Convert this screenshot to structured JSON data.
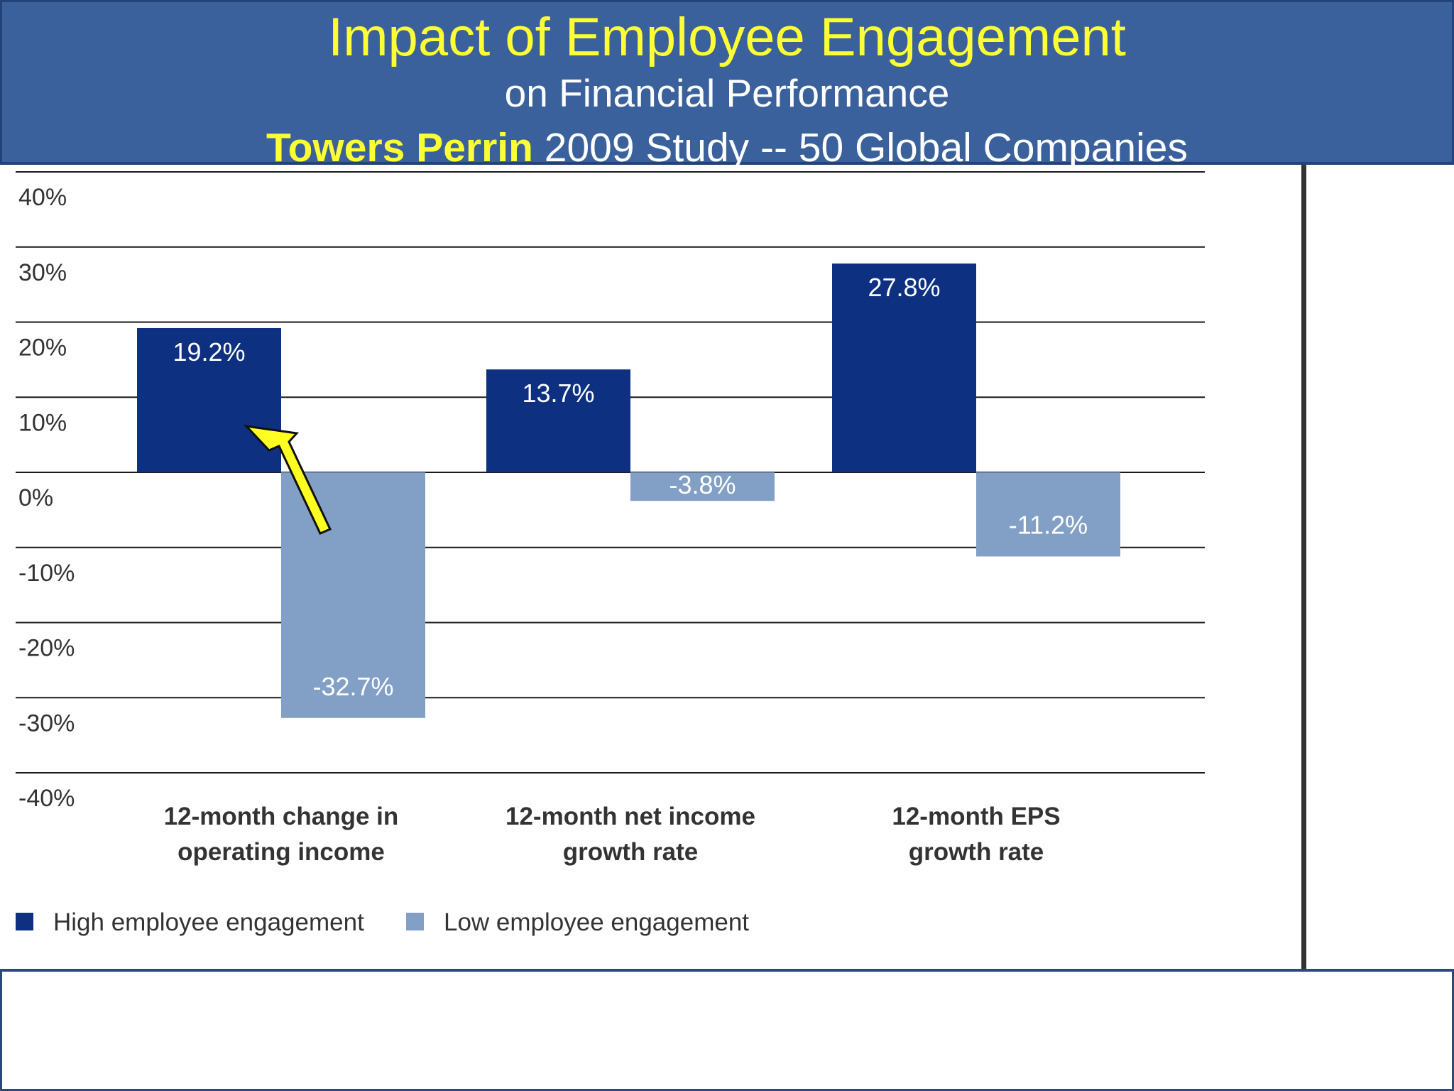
{
  "header": {
    "title": "Impact of Employee Engagement",
    "subtitle": "on Financial Performance",
    "source_highlight": "Towers Perrin",
    "source_rest": " 2009 Study -- 50 Global Companies"
  },
  "colors": {
    "banner": "#3a619b",
    "title": "#ffff33",
    "high": "#0d3080",
    "low": "#82a0c6",
    "arrow": "#ffff22"
  },
  "chart_data": {
    "type": "bar",
    "title": "Impact of Employee Engagement",
    "categories": [
      [
        "12-month change in",
        "operating income"
      ],
      [
        "12-month net income",
        "growth rate"
      ],
      [
        "12-month EPS",
        "growth rate"
      ]
    ],
    "series": [
      {
        "name": "High employee engagement",
        "values": [
          19.2,
          13.7,
          27.8
        ],
        "labels": [
          "19.2%",
          "13.7%",
          "27.8%"
        ]
      },
      {
        "name": "Low employee engagement",
        "values": [
          -32.7,
          -3.8,
          -11.2
        ],
        "labels": [
          "-32.7%",
          "-3.8%",
          "-11.2%"
        ]
      }
    ],
    "ylim": [
      -40,
      40
    ],
    "yticks": [
      40,
      30,
      20,
      10,
      0,
      -10,
      -20,
      -30,
      -40
    ],
    "ytick_labels": [
      "40%",
      "30%",
      "20%",
      "10%",
      "0%",
      "-10%",
      "-20%",
      "-30%",
      "-40%"
    ],
    "grid": true,
    "legend_position": "bottom-left",
    "annotation": {
      "type": "arrow",
      "points_to": "High employee engagement - 12-month change in operating income",
      "color": "#ffff22"
    }
  }
}
